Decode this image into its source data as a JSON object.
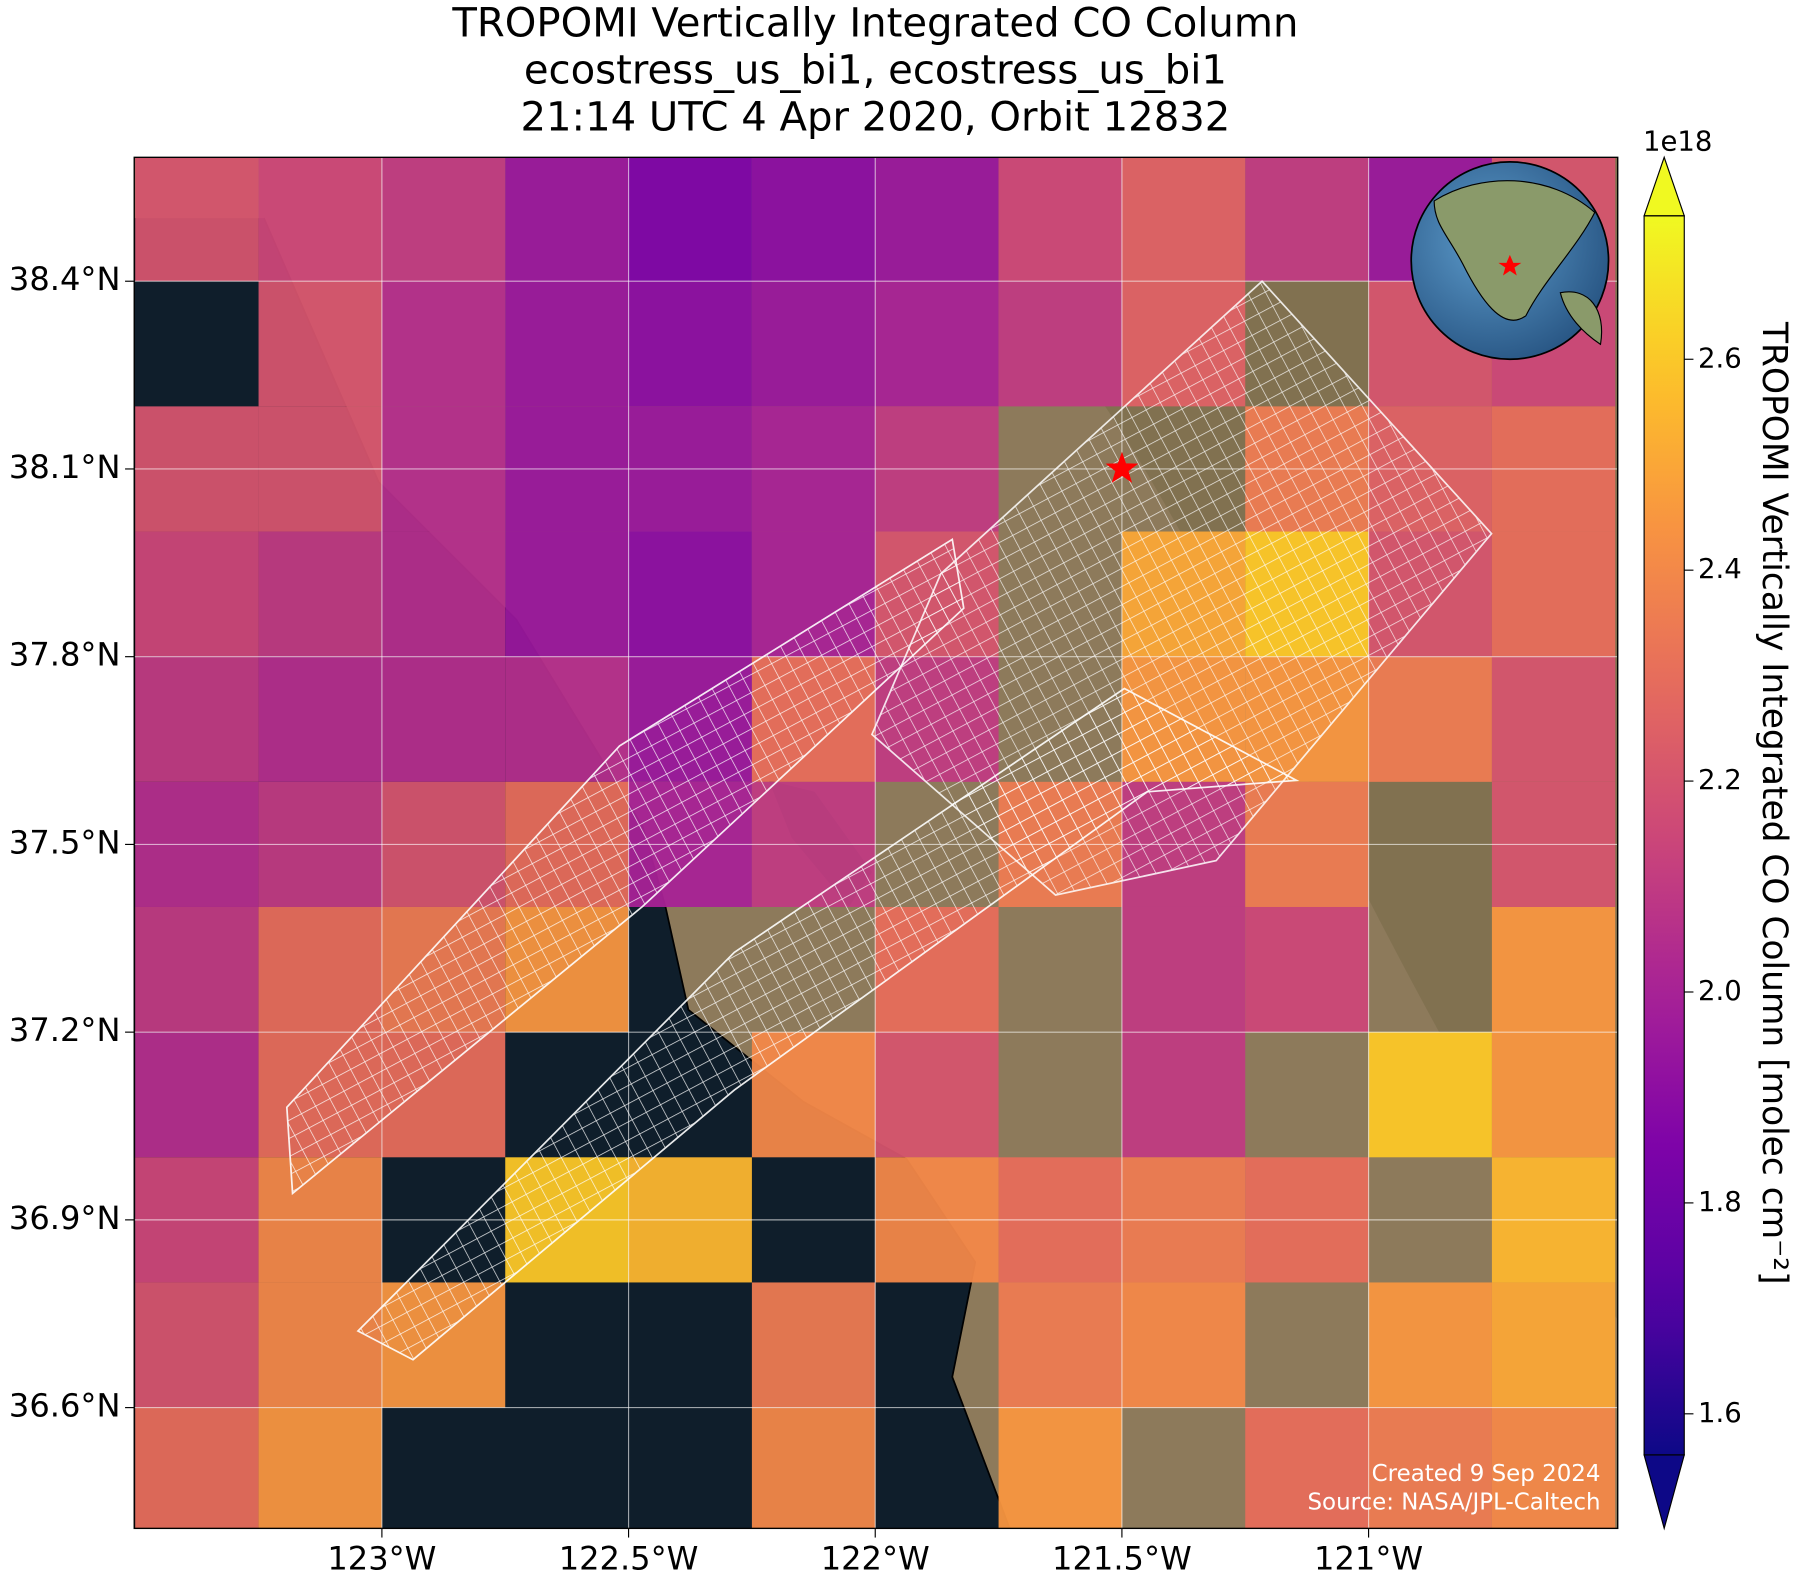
{
  "chart_data": {
    "type": "map",
    "title": [
      "TROPOMI Vertically Integrated CO Column",
      "ecostress_us_bi1, ecostress_us_bi1",
      "21:14 UTC 4 Apr 2020, Orbit 12832"
    ],
    "xlim": [
      -123.502,
      -120.495
    ],
    "ylim": [
      36.407,
      38.598
    ],
    "xticks": [
      {
        "value": -123,
        "label": "123°W"
      },
      {
        "value": -122.5,
        "label": "122.5°W"
      },
      {
        "value": -122,
        "label": "122°W"
      },
      {
        "value": -121.5,
        "label": "121.5°W"
      },
      {
        "value": -121,
        "label": "121°W"
      }
    ],
    "yticks": [
      {
        "value": 38.4,
        "label": "38.4°N"
      },
      {
        "value": 38.1,
        "label": "38.1°N"
      },
      {
        "value": 37.8,
        "label": "37.8°N"
      },
      {
        "value": 37.5,
        "label": "37.5°N"
      },
      {
        "value": 37.2,
        "label": "37.2°N"
      },
      {
        "value": 36.9,
        "label": "36.9°N"
      },
      {
        "value": 36.6,
        "label": "36.6°N"
      }
    ],
    "grid": true,
    "colormap": "plasma",
    "clim": [
      1.561,
      2.736
    ],
    "colorbar_ticks": [
      1.6,
      1.8,
      {
        "value": 2.0,
        "label": "2.0"
      },
      2.2,
      2.4,
      2.6
    ],
    "colorbar_offset": "1e18",
    "colorbar_label": "TROPOMI Vertically Integrated CO Column [molec cm⁻²]",
    "grid_cells": {
      "lon_edges": [
        -123.5,
        -123.25,
        -123,
        -122.75,
        -122.5,
        -122.25,
        -122,
        -121.75,
        -121.5,
        -121.25,
        -121,
        -120.75,
        -120.5
      ],
      "lat_edges": [
        38.6,
        38.4,
        38.2,
        38.0,
        37.8,
        37.6,
        37.4,
        37.2,
        37.0,
        36.8,
        36.6,
        36.4
      ],
      "values": [
        [
          2.2,
          2.15,
          2.1,
          1.95,
          1.85,
          1.9,
          1.95,
          2.15,
          2.25,
          2.1,
          1.95,
          2.2
        ],
        [
          null,
          2.2,
          2.05,
          1.95,
          1.9,
          1.95,
          2.0,
          2.1,
          2.25,
          null,
          2.2,
          2.15
        ],
        [
          2.2,
          2.2,
          2.05,
          1.95,
          1.95,
          2.0,
          2.1,
          null,
          null,
          2.35,
          2.25,
          2.3
        ],
        [
          2.15,
          2.1,
          2.05,
          1.95,
          1.9,
          2.0,
          2.2,
          null,
          2.5,
          2.6,
          2.2,
          2.3
        ],
        [
          2.1,
          2.05,
          2.05,
          2.05,
          1.95,
          2.3,
          2.1,
          null,
          2.45,
          2.45,
          2.35,
          2.2
        ],
        [
          2.05,
          2.1,
          2.2,
          2.3,
          2.0,
          2.1,
          null,
          2.35,
          2.1,
          2.35,
          null,
          2.2
        ],
        [
          2.1,
          2.3,
          2.35,
          2.45,
          null,
          null,
          2.3,
          null,
          2.1,
          2.15,
          null,
          2.45
        ],
        [
          2.05,
          2.3,
          2.3,
          null,
          null,
          2.4,
          2.2,
          null,
          2.1,
          null,
          2.6,
          2.45
        ],
        [
          2.15,
          2.4,
          null,
          2.6,
          2.55,
          null,
          2.4,
          2.3,
          2.35,
          2.3,
          null,
          2.55
        ],
        [
          2.2,
          2.4,
          2.45,
          null,
          null,
          2.35,
          null,
          2.35,
          2.4,
          null,
          2.45,
          2.5
        ],
        [
          2.3,
          2.45,
          null,
          null,
          null,
          2.4,
          null,
          2.45,
          null,
          2.3,
          2.35,
          2.4
        ]
      ]
    },
    "marker": {
      "lon": -121.5,
      "lat": 38.1,
      "color": "#ff0000"
    },
    "annotations": [
      "Created 9 Sep 2024",
      "Source: NASA/JPL-Caltech"
    ]
  }
}
